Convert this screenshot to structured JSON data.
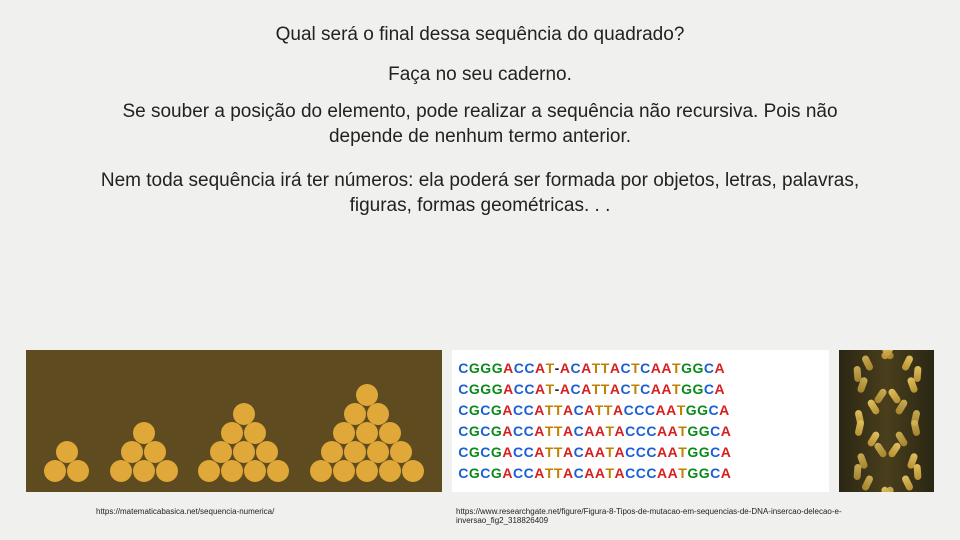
{
  "title": "Qual será o final dessa sequência do  quadrado?",
  "sub": "Faça no seu caderno.",
  "para1": "Se souber a posição do elemento, pode realizar a sequência não recursiva. Pois não depende de nenhum termo anterior.",
  "para2": "Nem toda sequência irá ter números: ela poderá ser formada por objetos, letras, palavras, figuras, formas geométricas. . .",
  "pyramid": {
    "background": "#5e4b20",
    "ball_color": "#e0a838",
    "groups": [
      {
        "rows": [
          1,
          2
        ],
        "ball_size": 22
      },
      {
        "rows": [
          1,
          2,
          3
        ],
        "ball_size": 22
      },
      {
        "rows": [
          1,
          2,
          3,
          4
        ],
        "ball_size": 22
      },
      {
        "rows": [
          1,
          2,
          3,
          4,
          5
        ],
        "ball_size": 22
      }
    ]
  },
  "dna": {
    "colors": {
      "C": "#1a5fd6",
      "G": "#0a8a1a",
      "A": "#d62020",
      "T": "#c08000",
      "-": "#222222"
    },
    "sequences": [
      "CGGGACCAT-ACATTACTCAATGGCA",
      "CGGGACCAT-ACATTACTCAATGGCA",
      "CGCGACCATTACATTACCCAATGGCA",
      "CGCGACCATTACAATACCCAATGGCA",
      "CGCGACCATTACAATACCCAATGGCA",
      "CGCGACCATTACAATACCCAATGGCA"
    ]
  },
  "cite1": "https://matematicabasica.net/sequencia-numerica/",
  "cite2": "https://www.researchgate.net/figure/Figura-8-Tipos-de-mutacao-em-sequencias-de-DNA-insercao-delecao-e-inversao_fig2_318826409"
}
